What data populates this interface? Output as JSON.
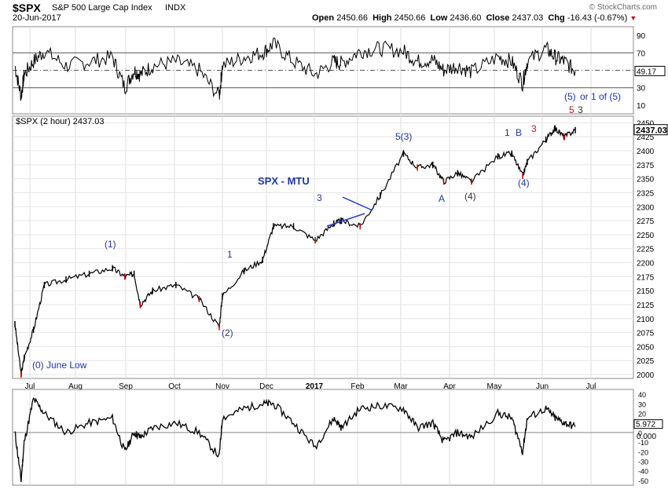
{
  "header": {
    "symbol": "$SPX",
    "name": "S&P 500 Large Cap Index",
    "exchange": "INDX",
    "date": "20-Jun-2017",
    "open_label": "Open",
    "open": "2450.66",
    "high_label": "High",
    "high": "2450.66",
    "low_label": "Low",
    "low": "2436.60",
    "close_label": "Close",
    "close": "2437.03",
    "chg_label": "Chg",
    "chg": "-16.43 (-0.67%)",
    "copyright": "© StockCharts.com"
  },
  "colors": {
    "grid": "#d8d8d8",
    "price_up": "#000000",
    "price_down": "#cc0000",
    "wave_blue": "#1f35a8",
    "wave_red": "#b01818",
    "wave_gray": "#333333",
    "trendline": "#2b3bd6"
  },
  "rsi_panel": {
    "ticks": [
      "90",
      "70",
      "50",
      "30",
      "10"
    ],
    "current_label": "49.17",
    "upper_band": 70,
    "lower_band": 30,
    "ylim": [
      0,
      100
    ]
  },
  "price_panel": {
    "legend": "$SPX (2 hour) 2437.03",
    "current_label": "2437.03",
    "ylim": [
      1990,
      2450
    ],
    "ticks": [
      "2450",
      "2425",
      "2400",
      "2375",
      "2350",
      "2325",
      "2300",
      "2275",
      "2250",
      "2225",
      "2200",
      "2175",
      "2150",
      "2125",
      "2100",
      "2075",
      "2050",
      "2025",
      "2000"
    ]
  },
  "osc_panel": {
    "ticks": [
      "40",
      "30",
      "20",
      "10",
      "0",
      "-10",
      "-20",
      "-30",
      "-40",
      "-50"
    ],
    "current_label": "5.972",
    "zero_label": "0.000",
    "ylim": [
      -55,
      45
    ]
  },
  "x_axis": {
    "months": [
      "Jul",
      "Aug",
      "Sep",
      "Oct",
      "Nov",
      "Dec",
      "2017",
      "Feb",
      "Mar",
      "Apr",
      "May",
      "Jun",
      "Jul"
    ]
  },
  "annotations": {
    "title": "SPX - MTU",
    "w0": "(0) June Low",
    "w1p": "(1)",
    "w2p": "(2)",
    "w1": "1",
    "w3": "3",
    "w53": "5(3)",
    "wA": "A",
    "w4g": "(4)",
    "w1b": "1",
    "wB": "B",
    "w3r": "3",
    "w4p": "(4)",
    "w5or": "(5)",
    "w5of": "or 1 of (5)",
    "w5r": "5",
    "w3g": "3"
  },
  "chart_data": {
    "type": "line",
    "title": "$SPX S&P 500 Large Cap Index",
    "xlabel": "",
    "ylabel": "",
    "x": [
      "2017-06-23",
      "2017-06-27",
      "2017-06-29",
      "2017-07-05",
      "2017-07-12",
      "2017-07-26",
      "2017-08-10",
      "2017-08-25",
      "2017-09-02",
      "2017-09-08",
      "2017-09-12",
      "2017-09-20",
      "2017-10-05",
      "2017-10-20",
      "2017-11-02",
      "2017-11-04",
      "2017-11-18",
      "2017-11-30",
      "2017-12-07",
      "2017-12-20",
      "2018-01-03",
      "2018-01-15",
      "2018-01-20",
      "2018-02-01",
      "2018-02-14",
      "2018-03-01",
      "2018-03-10",
      "2018-03-20",
      "2018-03-27",
      "2018-04-05",
      "2018-04-14",
      "2018-05-01",
      "2018-05-10",
      "2018-05-17",
      "2018-05-20",
      "2018-06-01",
      "2018-06-07",
      "2018-06-13",
      "2018-06-20"
    ],
    "series": [
      {
        "name": "$SPX (2 hour)",
        "values": [
          2090,
          2000,
          2030,
          2080,
          2160,
          2170,
          2180,
          2190,
          2175,
          2180,
          2125,
          2150,
          2160,
          2135,
          2085,
          2140,
          2185,
          2205,
          2265,
          2265,
          2240,
          2270,
          2275,
          2265,
          2320,
          2395,
          2370,
          2375,
          2345,
          2360,
          2345,
          2390,
          2395,
          2355,
          2380,
          2420,
          2440,
          2425,
          2437
        ]
      }
    ],
    "rsi": {
      "name": "RSI",
      "values": [
        55,
        20,
        45,
        60,
        72,
        55,
        60,
        65,
        30,
        50,
        45,
        55,
        60,
        50,
        20,
        55,
        65,
        70,
        80,
        60,
        45,
        60,
        58,
        72,
        75,
        72,
        60,
        62,
        50,
        55,
        48,
        65,
        60,
        35,
        60,
        75,
        65,
        60,
        49.17
      ]
    },
    "oscillator": {
      "name": "Oscillator",
      "values": [
        0,
        -50,
        -10,
        35,
        20,
        0,
        10,
        15,
        -20,
        0,
        -5,
        5,
        10,
        0,
        -25,
        15,
        25,
        30,
        30,
        10,
        -15,
        15,
        5,
        25,
        28,
        25,
        5,
        10,
        -10,
        0,
        -5,
        20,
        15,
        -20,
        15,
        25,
        15,
        10,
        5.97
      ]
    },
    "ylim": [
      1990,
      2450
    ]
  }
}
